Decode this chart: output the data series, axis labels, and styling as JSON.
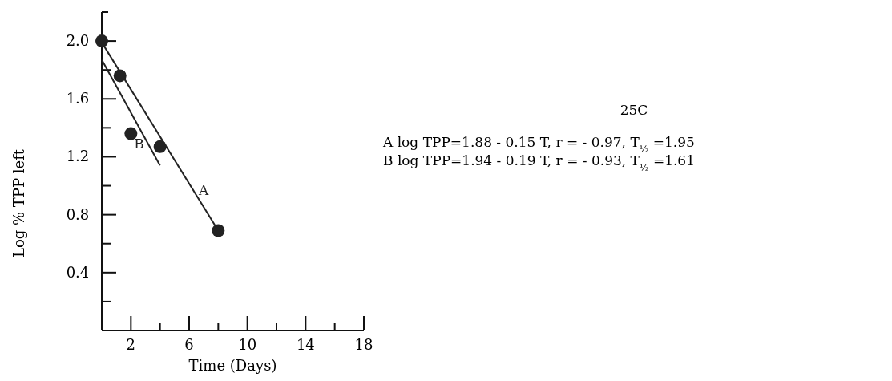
{
  "chart_data": {
    "type": "scatter",
    "title": "25C",
    "xlabel": "Time (Days)",
    "ylabel": "Log % TPP left",
    "xlim": [
      0,
      18
    ],
    "ylim": [
      0,
      2.2
    ],
    "xticks": [
      {
        "value": 0,
        "label": null
      },
      2,
      {
        "value": 4,
        "label": null
      },
      6,
      {
        "value": 8,
        "label": null
      },
      10,
      {
        "value": 12,
        "label": null
      },
      14,
      {
        "value": 16,
        "label": null
      },
      18
    ],
    "yticks": [
      {
        "value": 0.2,
        "label": null
      },
      0.4,
      {
        "value": 0.6,
        "label": null
      },
      0.8,
      {
        "value": 1,
        "label": null
      },
      1.2,
      {
        "value": 1.4,
        "label": null
      },
      1.6,
      {
        "value": 1.8,
        "label": null
      },
      {
        "value": 2,
        "label": "2.0"
      }
    ],
    "marker": "circle",
    "grid": false,
    "series": [
      {
        "color": "#222222",
        "x": [
          0,
          1.25,
          2,
          4,
          8
        ],
        "values": [
          2.0,
          1.76,
          1.36,
          1.27,
          0.69
        ]
      },
      {
        "type": "line",
        "name": "A",
        "marker": "none",
        "color": "#222222",
        "x": [
          0,
          8
        ],
        "values": [
          1.99,
          0.69
        ]
      },
      {
        "type": "line",
        "name": "B",
        "marker": "none",
        "color": "#222222",
        "x": [
          0,
          4
        ],
        "values": [
          1.87,
          1.14
        ]
      }
    ],
    "annotations": [
      "A  log TPP=1.88 - 0.15 T, r = - 0.97, T$_{½}$ =1.95",
      "B  log TPP=1.94 - 0.19 T, r = - 0.93, T$_{½}$ =1.61"
    ]
  }
}
